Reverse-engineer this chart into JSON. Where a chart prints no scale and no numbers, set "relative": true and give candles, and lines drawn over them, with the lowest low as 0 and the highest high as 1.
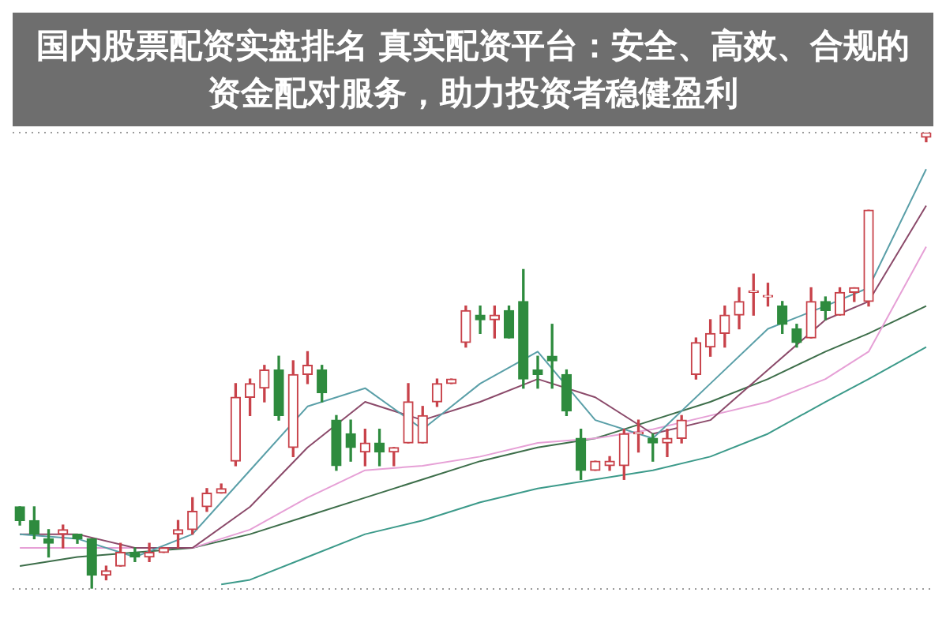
{
  "chart_data": {
    "type": "candlestick",
    "title": "国内股票配资实盘排名 真实配资平台：安全、高效、合规的资金配对服务，助力投资者稳健盈利",
    "relative": true,
    "grid": "y",
    "categories": [
      null,
      null,
      null,
      null,
      null,
      null,
      null,
      null,
      null,
      null,
      null,
      null,
      null,
      null,
      null,
      null,
      null,
      null,
      null,
      null,
      null,
      null,
      null,
      null,
      null,
      null,
      null,
      null,
      null,
      null,
      null,
      null,
      null,
      null,
      null,
      null,
      null,
      null,
      null,
      null,
      null,
      null,
      null,
      null,
      null,
      null,
      null,
      null,
      null,
      null,
      null,
      null,
      null,
      null,
      null,
      null,
      null,
      null,
      null,
      null,
      null,
      null,
      null,
      null
    ],
    "ohlc": [
      [
        0.18,
        0.18,
        0.14,
        0.15
      ],
      [
        0.15,
        0.18,
        0.11,
        0.12
      ],
      [
        0.11,
        0.13,
        0.07,
        0.1
      ],
      [
        0.12,
        0.14,
        0.09,
        0.13
      ],
      [
        0.12,
        0.12,
        0.1,
        0.11
      ],
      [
        0.11,
        0.11,
        0,
        0.03
      ],
      [
        0.03,
        0.05,
        0.02,
        0.04
      ],
      [
        0.05,
        0.1,
        0.05,
        0.08
      ],
      [
        0.08,
        0.09,
        0.06,
        0.07
      ],
      [
        0.07,
        0.1,
        0.06,
        0.08
      ],
      [
        0.08,
        0.09,
        0.08,
        0.09
      ],
      [
        0.12,
        0.15,
        0.09,
        0.13
      ],
      [
        0.13,
        0.2,
        0.12,
        0.17
      ],
      [
        0.18,
        0.22,
        0.17,
        0.21
      ],
      [
        0.21,
        0.23,
        0.21,
        0.22
      ],
      [
        0.28,
        0.45,
        0.27,
        0.42
      ],
      [
        0.42,
        0.46,
        0.38,
        0.45
      ],
      [
        0.44,
        0.49,
        0.41,
        0.48
      ],
      [
        0.48,
        0.51,
        0.37,
        0.38
      ],
      [
        0.31,
        0.5,
        0.29,
        0.47
      ],
      [
        0.47,
        0.52,
        0.45,
        0.49
      ],
      [
        0.48,
        0.49,
        0.41,
        0.43
      ],
      [
        0.37,
        0.38,
        0.26,
        0.27
      ],
      [
        0.34,
        0.37,
        0.28,
        0.31
      ],
      [
        0.3,
        0.35,
        0.27,
        0.32
      ],
      [
        0.32,
        0.35,
        0.27,
        0.3
      ],
      [
        0.3,
        0.31,
        0.27,
        0.31
      ],
      [
        0.32,
        0.45,
        0.32,
        0.41
      ],
      [
        0.32,
        0.4,
        0.32,
        0.38
      ],
      [
        0.41,
        0.46,
        0.4,
        0.45
      ],
      [
        0.45,
        0.46,
        0.45,
        0.46
      ],
      [
        0.54,
        0.62,
        0.53,
        0.61
      ],
      [
        0.6,
        0.62,
        0.56,
        0.59
      ],
      [
        0.59,
        0.62,
        0.55,
        0.6
      ],
      [
        0.61,
        0.62,
        0.55,
        0.55
      ],
      [
        0.63,
        0.7,
        0.44,
        0.46
      ],
      [
        0.48,
        0.51,
        0.44,
        0.47
      ],
      [
        0.51,
        0.58,
        0.44,
        0.5
      ],
      [
        0.47,
        0.48,
        0.38,
        0.39
      ],
      [
        0.33,
        0.35,
        0.24,
        0.26
      ],
      [
        0.26,
        0.28,
        0.26,
        0.28
      ],
      [
        0.27,
        0.29,
        0.26,
        0.28
      ],
      [
        0.27,
        0.35,
        0.24,
        0.34
      ],
      [
        0.34,
        0.37,
        0.3,
        0.34
      ],
      [
        0.33,
        0.34,
        0.28,
        0.32
      ],
      [
        0.32,
        0.35,
        0.29,
        0.33
      ],
      [
        0.33,
        0.38,
        0.32,
        0.37
      ],
      [
        0.47,
        0.55,
        0.46,
        0.54
      ],
      [
        0.53,
        0.59,
        0.51,
        0.56
      ],
      [
        0.56,
        0.62,
        0.53,
        0.6
      ],
      [
        0.6,
        0.66,
        0.57,
        0.63
      ],
      [
        0.65,
        0.69,
        0.6,
        0.65
      ],
      [
        0.64,
        0.67,
        0.62,
        0.64
      ],
      [
        0.62,
        0.63,
        0.56,
        0.58
      ],
      [
        0.57,
        0.58,
        0.53,
        0.54
      ],
      [
        0.55,
        0.66,
        0.55,
        0.63
      ],
      [
        0.63,
        0.64,
        0.59,
        0.61
      ],
      [
        0.6,
        0.66,
        0.6,
        0.65
      ],
      [
        0.65,
        0.66,
        0.63,
        0.66
      ],
      [
        0.63,
        0.83,
        0.62,
        0.83
      ],
      null,
      null,
      null,
      [
        0.99,
        1,
        0.98,
        1
      ]
    ],
    "series": [
      {
        "type": "line",
        "color": "#5a9fa8",
        "values": [
          0.12,
          null,
          null,
          null,
          0.11,
          null,
          null,
          null,
          0.07,
          null,
          null,
          null,
          0.12,
          null,
          null,
          null,
          0.26,
          null,
          null,
          null,
          0.4,
          null,
          null,
          null,
          0.44,
          null,
          null,
          null,
          0.35,
          null,
          null,
          null,
          0.45,
          null,
          null,
          null,
          0.52,
          null,
          null,
          null,
          0.37,
          null,
          null,
          null,
          0.33,
          null,
          null,
          null,
          0.45,
          null,
          null,
          null,
          0.57,
          null,
          null,
          null,
          0.62,
          null,
          null,
          0.66,
          null,
          null,
          null,
          0.92
        ]
      },
      {
        "type": "line",
        "color": "#8b4a6a",
        "values": [
          0.12,
          null,
          null,
          null,
          0.12,
          null,
          null,
          null,
          0.09,
          null,
          null,
          null,
          0.09,
          null,
          null,
          null,
          0.18,
          null,
          null,
          null,
          0.31,
          null,
          null,
          null,
          0.41,
          null,
          null,
          null,
          0.37,
          null,
          null,
          null,
          0.41,
          null,
          null,
          null,
          0.46,
          null,
          null,
          null,
          0.42,
          null,
          null,
          null,
          0.34,
          null,
          null,
          null,
          0.37,
          null,
          null,
          null,
          0.48,
          null,
          null,
          null,
          0.59,
          null,
          null,
          0.63,
          null,
          null,
          null,
          0.84
        ]
      },
      {
        "type": "line",
        "color": "#e6a0d6",
        "values": [
          0.09,
          null,
          null,
          null,
          0.09,
          null,
          null,
          null,
          0.09,
          null,
          null,
          null,
          0.09,
          null,
          null,
          null,
          0.13,
          null,
          null,
          null,
          0.2,
          null,
          null,
          null,
          0.26,
          null,
          null,
          null,
          0.27,
          null,
          null,
          null,
          0.29,
          null,
          null,
          null,
          0.32,
          null,
          null,
          null,
          0.33,
          null,
          null,
          null,
          0.35,
          null,
          null,
          null,
          0.38,
          null,
          null,
          null,
          0.41,
          null,
          null,
          null,
          0.46,
          null,
          null,
          0.52,
          null,
          null,
          null,
          0.75
        ]
      },
      {
        "type": "line",
        "color": "#3d6e4a",
        "values": [
          0.05,
          null,
          null,
          null,
          0.07,
          null,
          null,
          null,
          0.08,
          null,
          null,
          null,
          0.09,
          null,
          null,
          null,
          0.12,
          null,
          null,
          null,
          0.16,
          null,
          null,
          null,
          0.2,
          null,
          null,
          null,
          0.24,
          null,
          null,
          null,
          0.28,
          null,
          null,
          null,
          0.31,
          null,
          null,
          null,
          0.33,
          null,
          null,
          null,
          0.37,
          null,
          null,
          null,
          0.41,
          null,
          null,
          null,
          0.46,
          null,
          null,
          null,
          0.52,
          null,
          null,
          0.56,
          null,
          null,
          null,
          0.62
        ]
      },
      {
        "type": "line",
        "color": "#3c9a8a",
        "values": [
          null,
          null,
          null,
          null,
          null,
          null,
          null,
          null,
          null,
          null,
          null,
          null,
          null,
          null,
          0.01,
          null,
          0.02,
          null,
          null,
          null,
          0.07,
          null,
          null,
          null,
          0.12,
          null,
          null,
          null,
          0.15,
          null,
          null,
          null,
          0.19,
          null,
          null,
          null,
          0.22,
          null,
          null,
          null,
          0.24,
          null,
          null,
          null,
          0.26,
          null,
          null,
          null,
          0.29,
          null,
          null,
          null,
          0.34,
          null,
          null,
          null,
          0.41,
          null,
          null,
          0.46,
          null,
          null,
          null,
          0.53
        ]
      }
    ]
  }
}
